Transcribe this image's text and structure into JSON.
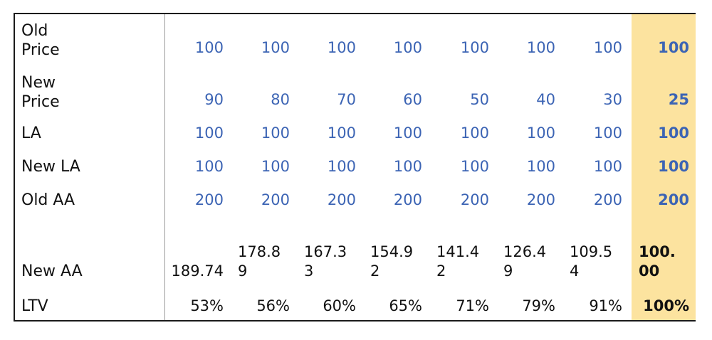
{
  "columns": 8,
  "highlight_color": "#fce39f",
  "value_color": "#3c64b4",
  "rows": [
    {
      "label": "Old\nPrice",
      "values": [
        "100",
        "100",
        "100",
        "100",
        "100",
        "100",
        "100",
        "100"
      ],
      "style": "blue"
    },
    {
      "label": "New\nPrice",
      "values": [
        "90",
        "80",
        "70",
        "60",
        "50",
        "40",
        "30",
        "25"
      ],
      "style": "blue"
    },
    {
      "label": "LA",
      "values": [
        "100",
        "100",
        "100",
        "100",
        "100",
        "100",
        "100",
        "100"
      ],
      "style": "blue"
    },
    {
      "label": "New LA",
      "values": [
        "100",
        "100",
        "100",
        "100",
        "100",
        "100",
        "100",
        "100"
      ],
      "style": "blue"
    },
    {
      "label": "Old AA",
      "values": [
        "200",
        "200",
        "200",
        "200",
        "200",
        "200",
        "200",
        "200"
      ],
      "style": "blue"
    },
    {
      "label": "New AA",
      "values": [
        "189.74",
        "178.89",
        "167.33",
        "154.92",
        "141.42",
        "126.49",
        "109.54",
        "100.00"
      ],
      "style": "black"
    },
    {
      "label": "LTV",
      "values": [
        "53%",
        "56%",
        "60%",
        "65%",
        "71%",
        "79%",
        "91%",
        "100%"
      ],
      "style": "black"
    }
  ]
}
